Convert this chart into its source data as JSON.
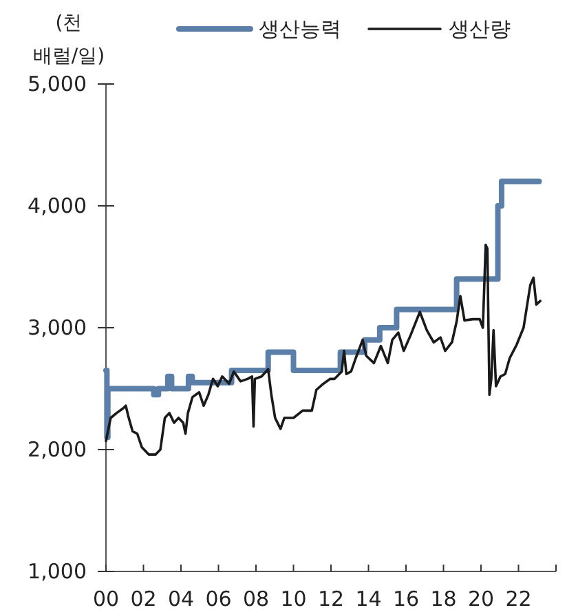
{
  "chart_data": {
    "type": "line",
    "ylabel": "(천 배럴/일)",
    "legend": "top",
    "xlim": [
      2000,
      2024
    ],
    "xticks": [
      {
        "value": 2000,
        "label": "00"
      },
      {
        "value": 2002,
        "label": "02"
      },
      {
        "value": 2004,
        "label": "04"
      },
      {
        "value": 2006,
        "label": "06"
      },
      {
        "value": 2008,
        "label": "08"
      },
      {
        "value": 2010,
        "label": "10"
      },
      {
        "value": 2012,
        "label": "12"
      },
      {
        "value": 2014,
        "label": "14"
      },
      {
        "value": 2016,
        "label": "16"
      },
      {
        "value": 2018,
        "label": "18"
      },
      {
        "value": 2020,
        "label": "20"
      },
      {
        "value": 2022,
        "label": "22"
      },
      {
        "value": 2024,
        "label": null
      }
    ],
    "ylim": [
      1000,
      5000
    ],
    "yticks": [
      {
        "value": 1000,
        "label": "1,000"
      },
      {
        "value": 2000,
        "label": "2,000"
      },
      {
        "value": 3000,
        "label": "3,000"
      },
      {
        "value": 4000,
        "label": "4,000"
      },
      {
        "value": 5000,
        "label": "5,000"
      }
    ],
    "series": [
      {
        "name": "생산능력",
        "type": "step",
        "color": "#5b7fa8",
        "x": [
          2000,
          2000.05,
          2000.1,
          2002.55,
          2002.8,
          2003.3,
          2003.5,
          2004.4,
          2004.6,
          2006.7,
          2008.65,
          2010.0,
          2012.5,
          2013.8,
          2014.6,
          2015.5,
          2018.7,
          2020.9,
          2021.1,
          2023.1
        ],
        "values": [
          2650,
          2100,
          2500,
          2450,
          2500,
          2600,
          2500,
          2600,
          2550,
          2650,
          2800,
          2650,
          2800,
          2900,
          3000,
          3150,
          3400,
          4000,
          4200,
          4200
        ]
      },
      {
        "name": "생산량",
        "type": "line",
        "color": "#1a1a1a",
        "x": [
          2000.0,
          2000.25,
          2000.57,
          2000.93,
          2001.06,
          2001.18,
          2001.42,
          2001.67,
          2001.91,
          2002.28,
          2002.65,
          2002.9,
          2003.14,
          2003.38,
          2003.63,
          2003.87,
          2004.12,
          2004.24,
          2004.37,
          2004.61,
          2004.97,
          2005.21,
          2005.46,
          2005.71,
          2005.96,
          2006.2,
          2006.57,
          2006.82,
          2007.18,
          2007.55,
          2007.79,
          2007.87,
          2007.94,
          2008.3,
          2008.65,
          2008.82,
          2009.02,
          2009.31,
          2009.51,
          2010.0,
          2010.49,
          2010.98,
          2011.22,
          2011.59,
          2011.96,
          2012.19,
          2012.57,
          2012.7,
          2012.82,
          2013.07,
          2013.32,
          2013.69,
          2013.88,
          2014.29,
          2014.66,
          2015.03,
          2015.27,
          2015.59,
          2015.88,
          2016.25,
          2016.74,
          2017.11,
          2017.48,
          2017.84,
          2018.09,
          2018.45,
          2018.7,
          2018.9,
          2019.12,
          2019.56,
          2019.93,
          2020.1,
          2020.25,
          2020.34,
          2020.45,
          2020.55,
          2020.67,
          2020.8,
          2021.04,
          2021.29,
          2021.53,
          2021.9,
          2022.27,
          2022.63,
          2022.8,
          2022.95,
          2023.16
        ],
        "values": [
          2070,
          2260,
          2300,
          2340,
          2360,
          2280,
          2150,
          2130,
          2020,
          1960,
          1960,
          2000,
          2260,
          2300,
          2220,
          2260,
          2220,
          2130,
          2300,
          2430,
          2470,
          2360,
          2450,
          2580,
          2520,
          2600,
          2540,
          2640,
          2560,
          2580,
          2600,
          2190,
          2580,
          2600,
          2660,
          2450,
          2260,
          2170,
          2260,
          2260,
          2320,
          2320,
          2490,
          2540,
          2580,
          2580,
          2640,
          2810,
          2620,
          2640,
          2750,
          2900,
          2770,
          2710,
          2850,
          2710,
          2900,
          2960,
          2810,
          2940,
          3130,
          2980,
          2880,
          2920,
          2810,
          2880,
          3050,
          3260,
          3060,
          3070,
          3070,
          3000,
          3680,
          3650,
          2450,
          2580,
          2980,
          2520,
          2600,
          2620,
          2750,
          2860,
          3000,
          3350,
          3410,
          3190,
          3220
        ]
      }
    ]
  }
}
